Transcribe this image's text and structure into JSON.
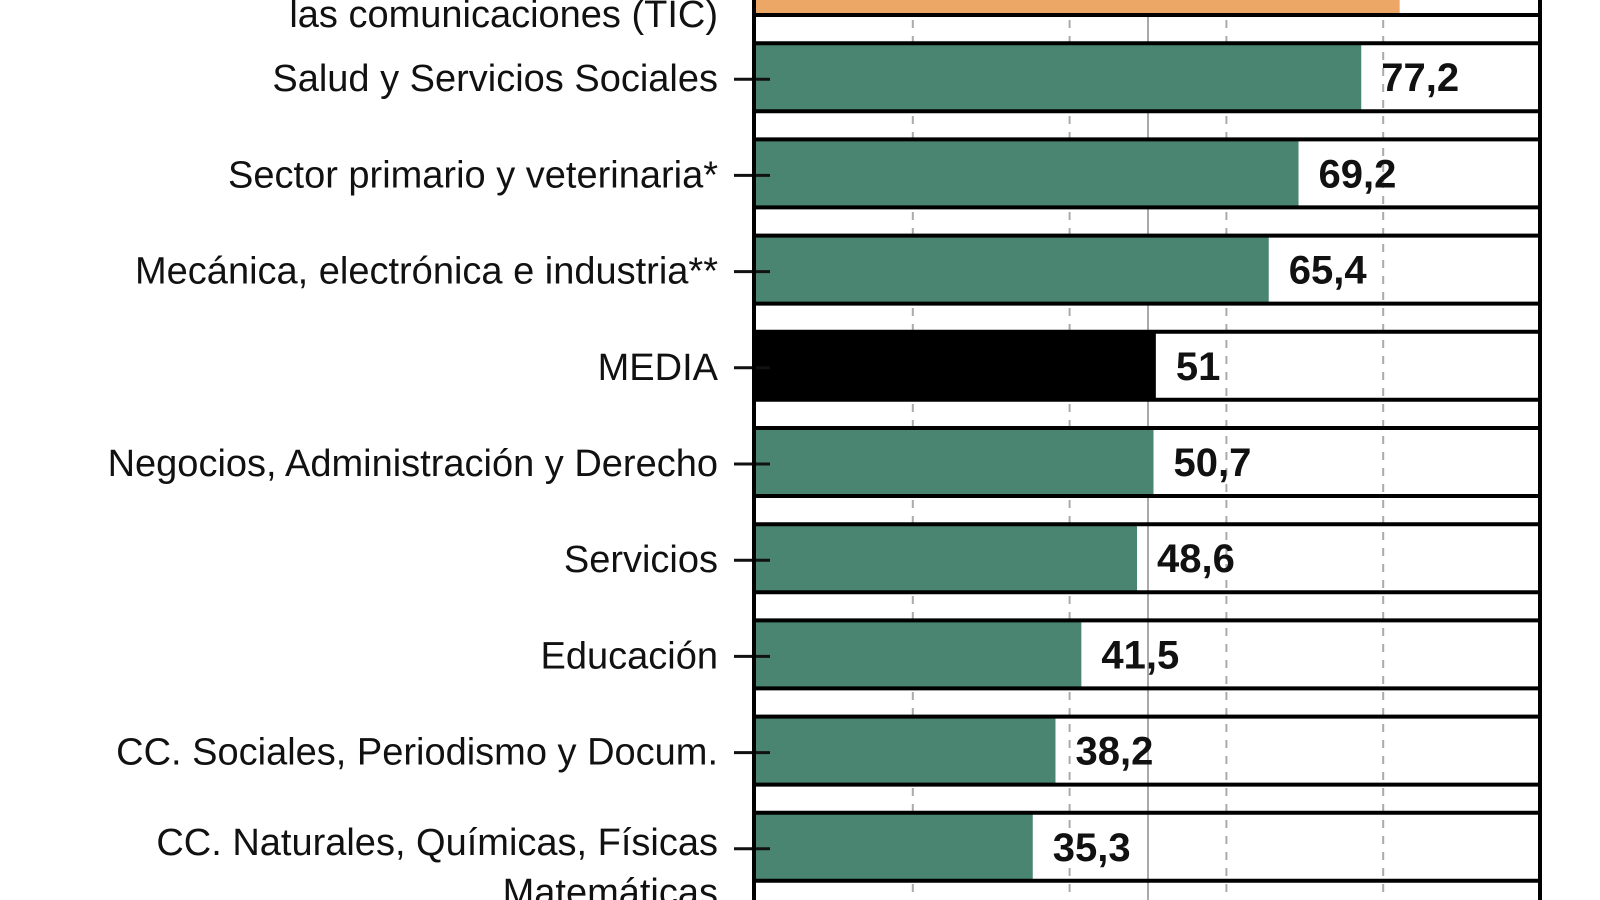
{
  "chart_data": {
    "type": "bar",
    "orientation": "horizontal",
    "categories": [
      [
        "las comunicaciones (TIC)"
      ],
      [
        "Salud y Servicios Sociales"
      ],
      [
        "Sector primario y veterinaria*"
      ],
      [
        "Mecánica, electrónica e industria**"
      ],
      [
        "MEDIA"
      ],
      [
        "Negocios, Administración y Derecho"
      ],
      [
        "Servicios"
      ],
      [
        "Educación"
      ],
      [
        "CC. Sociales, Periodismo y Docum."
      ],
      [
        "CC. Naturales, Químicas, Físicas",
        "Matemáticas"
      ]
    ],
    "values": [
      82.1,
      77.2,
      69.2,
      65.4,
      51,
      50.7,
      48.6,
      41.5,
      38.2,
      35.3
    ],
    "value_labels": [
      "",
      "77,2",
      "69,2",
      "65,4",
      "51",
      "50,7",
      "48,6",
      "41,5",
      "38,2",
      "35,3"
    ],
    "bar_colors": [
      "#eca766",
      "#4a8572",
      "#4a8572",
      "#4a8572",
      "#000000",
      "#4a8572",
      "#4a8572",
      "#4a8572",
      "#4a8572",
      "#4a8572"
    ],
    "xlim": [
      0,
      100
    ],
    "gridlines": [
      20,
      40,
      60,
      80
    ],
    "reference_line": 50,
    "grid": true
  }
}
